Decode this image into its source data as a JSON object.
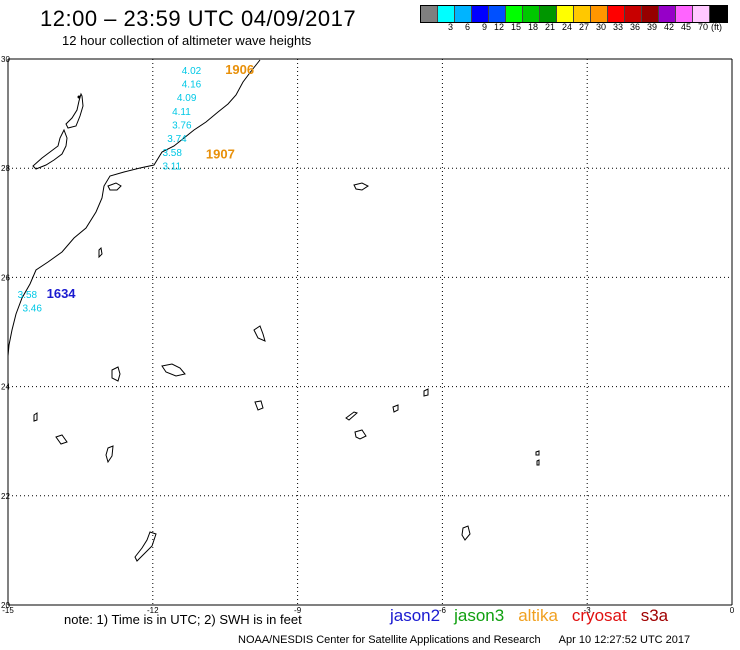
{
  "header": {
    "title": "12:00 – 23:59 UTC 04/09/2017",
    "subtitle": "12 hour collection of altimeter wave heights"
  },
  "colorbar": {
    "colors": [
      "#7f7f7f",
      "#00ffff",
      "#00b4ff",
      "#0000ff",
      "#0050ff",
      "#00ff00",
      "#00c800",
      "#009600",
      "#ffff00",
      "#ffc800",
      "#ff9600",
      "#ff0000",
      "#c80000",
      "#960000",
      "#9600c8",
      "#ff64ff",
      "#ffc8ff",
      "#000000"
    ],
    "labels": [
      "3",
      "6",
      "9",
      "12",
      "15",
      "18",
      "21",
      "24",
      "27",
      "30",
      "33",
      "36",
      "39",
      "42",
      "45",
      "70"
    ],
    "unit": "(ft)"
  },
  "map": {
    "lon_range": [
      -15,
      0
    ],
    "lat_range": [
      20,
      30
    ],
    "x_ticks": [
      "-15",
      "-12",
      "-9",
      "-6",
      "-3",
      "0"
    ],
    "y_ticks": [
      "30",
      "28",
      "26",
      "24",
      "22",
      "20"
    ],
    "track_labels": [
      {
        "text": "1906",
        "color": "#e8900a",
        "lon": -10.5,
        "lat": 29.8
      },
      {
        "text": "1907",
        "color": "#e8900a",
        "lon": -10.9,
        "lat": 28.25
      },
      {
        "text": "1634",
        "color": "#1a1ad0",
        "lon": -14.2,
        "lat": 25.7
      }
    ],
    "wave_heights": [
      {
        "text": "4.02",
        "lon": -11.4,
        "lat": 29.8
      },
      {
        "text": "4.16",
        "lon": -11.4,
        "lat": 29.55
      },
      {
        "text": "4.09",
        "lon": -11.5,
        "lat": 29.3
      },
      {
        "text": "4.11",
        "lon": -11.6,
        "lat": 29.05
      },
      {
        "text": "3.76",
        "lon": -11.6,
        "lat": 28.8
      },
      {
        "text": "3.74",
        "lon": -11.7,
        "lat": 28.55
      },
      {
        "text": "3.58",
        "lon": -11.8,
        "lat": 28.3
      },
      {
        "text": "3.11",
        "lon": -11.8,
        "lat": 28.05
      },
      {
        "text": "3.58",
        "lon": -14.8,
        "lat": 25.7
      },
      {
        "text": "3.46",
        "lon": -14.7,
        "lat": 25.45
      }
    ]
  },
  "footer": {
    "note": "note: 1) Time is in UTC; 2) SWH is in feet",
    "satellites": [
      {
        "name": "jason2",
        "color": "#1a1ad0"
      },
      {
        "name": "jason3",
        "color": "#10a010"
      },
      {
        "name": "altika",
        "color": "#f0a020"
      },
      {
        "name": "cryosat",
        "color": "#e01010"
      },
      {
        "name": "s3a",
        "color": "#a00000"
      }
    ],
    "credit": "NOAA/NESDIS Center for Satellite Applications and Research",
    "timestamp": "Apr 10 12:27:52 UTC 2017"
  }
}
